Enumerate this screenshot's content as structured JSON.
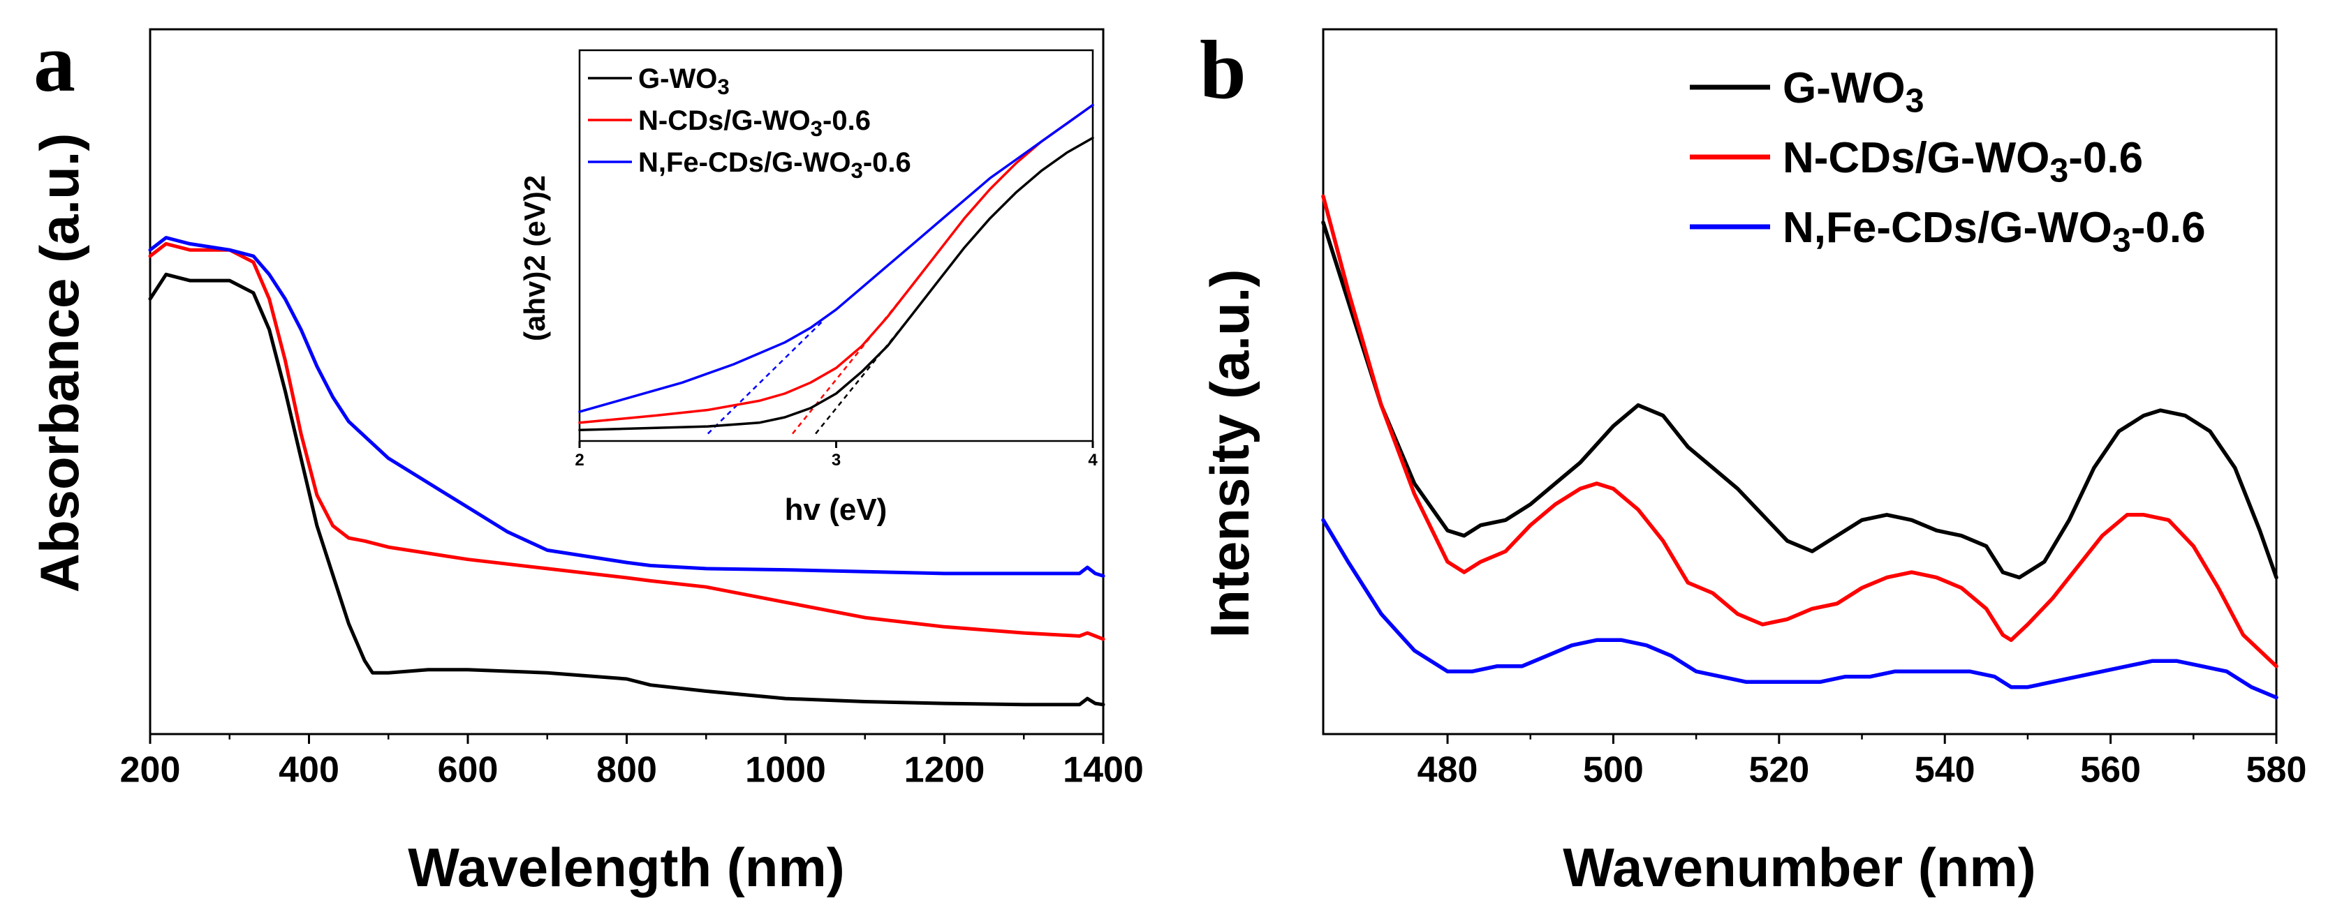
{
  "chart_data": [
    {
      "panel": "a",
      "type": "line",
      "xlabel": "Wavelength (nm)",
      "ylabel": "Absorbance (a.u.)",
      "xlim": [
        200,
        1400
      ],
      "ylim": [
        0,
        1
      ],
      "xticks": [
        "200",
        "400",
        "600",
        "800",
        "1000",
        "1200",
        "1400"
      ],
      "series": [
        {
          "name": "G-WO3",
          "color": "#000000",
          "x": [
            200,
            220,
            250,
            300,
            330,
            350,
            370,
            390,
            410,
            430,
            450,
            470,
            480,
            500,
            550,
            600,
            700,
            800,
            830,
            900,
            1000,
            1100,
            1200,
            1300,
            1370,
            1380,
            1390,
            1400
          ],
          "y": [
            0.71,
            0.75,
            0.74,
            0.74,
            0.72,
            0.66,
            0.56,
            0.45,
            0.34,
            0.26,
            0.18,
            0.12,
            0.1,
            0.1,
            0.105,
            0.105,
            0.1,
            0.09,
            0.08,
            0.07,
            0.058,
            0.053,
            0.05,
            0.048,
            0.048,
            0.058,
            0.05,
            0.048
          ]
        },
        {
          "name": "N-CDs/G-WO3-0.6",
          "color": "#ff0000",
          "x": [
            200,
            220,
            250,
            300,
            330,
            350,
            370,
            390,
            410,
            430,
            450,
            470,
            500,
            550,
            600,
            700,
            800,
            830,
            900,
            1000,
            1100,
            1200,
            1300,
            1370,
            1380,
            1390,
            1400
          ],
          "y": [
            0.78,
            0.8,
            0.79,
            0.79,
            0.77,
            0.71,
            0.61,
            0.49,
            0.39,
            0.34,
            0.32,
            0.315,
            0.305,
            0.295,
            0.285,
            0.27,
            0.255,
            0.25,
            0.24,
            0.215,
            0.19,
            0.175,
            0.165,
            0.16,
            0.165,
            0.16,
            0.155
          ]
        },
        {
          "name": "N,Fe-CDs/G-WO3-0.6",
          "color": "#0000ff",
          "x": [
            200,
            220,
            250,
            300,
            330,
            350,
            370,
            390,
            410,
            430,
            450,
            500,
            550,
            600,
            650,
            700,
            800,
            830,
            900,
            1000,
            1100,
            1200,
            1300,
            1370,
            1380,
            1390,
            1400
          ],
          "y": [
            0.79,
            0.81,
            0.8,
            0.79,
            0.78,
            0.75,
            0.71,
            0.66,
            0.6,
            0.55,
            0.51,
            0.45,
            0.41,
            0.37,
            0.33,
            0.3,
            0.28,
            0.275,
            0.27,
            0.268,
            0.265,
            0.262,
            0.262,
            0.262,
            0.272,
            0.262,
            0.258
          ]
        }
      ],
      "inset": {
        "type": "line",
        "xlabel": "hv (eV)",
        "ylabel": "(ahv)2 (eV)2",
        "xlim": [
          2,
          4
        ],
        "ylim": [
          0,
          1
        ],
        "xticks": [
          "2",
          "3",
          "4"
        ],
        "legend": [
          {
            "name": "G-WO3",
            "color": "#000000"
          },
          {
            "name": "N-CDs/G-WO3-0.6",
            "color": "#ff0000"
          },
          {
            "name": "N,Fe-CDs/G-WO3-0.6",
            "color": "#0000ff"
          }
        ],
        "series": [
          {
            "name": "G-WO3",
            "color": "#000000",
            "x": [
              2,
              2.5,
              2.7,
              2.8,
              2.9,
              3.0,
              3.1,
              3.2,
              3.3,
              3.4,
              3.5,
              3.6,
              3.7,
              3.8,
              3.9,
              4.0
            ],
            "y": [
              0.01,
              0.02,
              0.03,
              0.045,
              0.07,
              0.11,
              0.17,
              0.24,
              0.33,
              0.42,
              0.51,
              0.59,
              0.66,
              0.72,
              0.77,
              0.81
            ]
          },
          {
            "name": "N-CDs/G-WO3-0.6",
            "color": "#ff0000",
            "x": [
              2,
              2.3,
              2.5,
              2.7,
              2.8,
              2.9,
              3.0,
              3.1,
              3.2,
              3.3,
              3.4,
              3.5,
              3.6,
              3.7,
              3.8,
              3.9,
              4.0
            ],
            "y": [
              0.03,
              0.05,
              0.065,
              0.09,
              0.11,
              0.14,
              0.18,
              0.24,
              0.32,
              0.41,
              0.5,
              0.59,
              0.67,
              0.74,
              0.8,
              0.85,
              0.9
            ]
          },
          {
            "name": "N,Fe-CDs/G-WO3-0.6",
            "color": "#0000ff",
            "x": [
              2,
              2.2,
              2.4,
              2.6,
              2.8,
              2.9,
              3.0,
              3.1,
              3.2,
              3.3,
              3.4,
              3.5,
              3.6,
              3.7,
              3.8,
              3.9,
              4.0
            ],
            "y": [
              0.06,
              0.1,
              0.14,
              0.19,
              0.25,
              0.29,
              0.34,
              0.4,
              0.46,
              0.52,
              0.58,
              0.64,
              0.7,
              0.75,
              0.8,
              0.85,
              0.9
            ]
          }
        ],
        "tangent_lines": [
          {
            "series": "G-WO3",
            "color": "#000000",
            "x": [
              2.92,
              3.3
            ],
            "y": [
              0.0,
              0.33
            ]
          },
          {
            "series": "N-CDs/G-WO3-0.6",
            "color": "#ff0000",
            "x": [
              2.83,
              3.3
            ],
            "y": [
              0.0,
              0.41
            ]
          },
          {
            "series": "N,Fe-CDs/G-WO3-0.6",
            "color": "#0000ff",
            "x": [
              2.5,
              2.95
            ],
            "y": [
              0.0,
              0.31
            ]
          }
        ]
      }
    },
    {
      "panel": "b",
      "type": "line",
      "xlabel": "Wavenumber (nm)",
      "ylabel": "Intensity (a.u.)",
      "xlim": [
        465,
        580
      ],
      "ylim": [
        0,
        1
      ],
      "xticks": [
        "480",
        "500",
        "520",
        "540",
        "560",
        "580"
      ],
      "legend": [
        {
          "name": "G-WO3",
          "color": "#000000"
        },
        {
          "name": "N-CDs/G-WO3-0.6",
          "color": "#ff0000"
        },
        {
          "name": "N,Fe-CDs/G-WO3-0.6",
          "color": "#0000ff"
        }
      ],
      "series": [
        {
          "name": "G-WO3",
          "color": "#000000",
          "x": [
            465,
            468,
            472,
            476,
            480,
            482,
            484,
            487,
            490,
            493,
            496,
            500,
            503,
            506,
            509,
            512,
            515,
            518,
            521,
            524,
            527,
            530,
            533,
            536,
            539,
            542,
            545,
            547,
            549,
            552,
            555,
            558,
            561,
            564,
            566,
            569,
            572,
            575,
            578,
            580
          ],
          "y": [
            0.95,
            0.8,
            0.6,
            0.45,
            0.36,
            0.35,
            0.37,
            0.38,
            0.41,
            0.45,
            0.49,
            0.56,
            0.6,
            0.58,
            0.52,
            0.48,
            0.44,
            0.39,
            0.34,
            0.32,
            0.35,
            0.38,
            0.39,
            0.38,
            0.36,
            0.35,
            0.33,
            0.28,
            0.27,
            0.3,
            0.38,
            0.48,
            0.55,
            0.58,
            0.59,
            0.58,
            0.55,
            0.48,
            0.36,
            0.27
          ]
        },
        {
          "name": "N-CDs/G-WO3-0.6",
          "color": "#ff0000",
          "x": [
            465,
            468,
            472,
            476,
            480,
            482,
            484,
            487,
            490,
            493,
            496,
            498,
            500,
            503,
            506,
            509,
            512,
            515,
            518,
            521,
            524,
            527,
            530,
            533,
            536,
            539,
            542,
            545,
            547,
            548,
            550,
            553,
            556,
            559,
            562,
            564,
            567,
            570,
            573,
            576,
            580
          ],
          "y": [
            1.0,
            0.82,
            0.6,
            0.43,
            0.3,
            0.28,
            0.3,
            0.32,
            0.37,
            0.41,
            0.44,
            0.45,
            0.44,
            0.4,
            0.34,
            0.26,
            0.24,
            0.2,
            0.18,
            0.19,
            0.21,
            0.22,
            0.25,
            0.27,
            0.28,
            0.27,
            0.25,
            0.21,
            0.16,
            0.15,
            0.18,
            0.23,
            0.29,
            0.35,
            0.39,
            0.39,
            0.38,
            0.33,
            0.25,
            0.16,
            0.1
          ]
        },
        {
          "name": "N,Fe-CDs/G-WO3-0.6",
          "color": "#0000ff",
          "x": [
            465,
            468,
            472,
            476,
            480,
            483,
            486,
            489,
            492,
            495,
            498,
            501,
            504,
            507,
            510,
            513,
            516,
            519,
            522,
            525,
            528,
            531,
            534,
            537,
            540,
            543,
            546,
            548,
            550,
            553,
            556,
            559,
            562,
            565,
            568,
            571,
            574,
            577,
            580
          ],
          "y": [
            0.38,
            0.3,
            0.2,
            0.13,
            0.09,
            0.09,
            0.1,
            0.1,
            0.12,
            0.14,
            0.15,
            0.15,
            0.14,
            0.12,
            0.09,
            0.08,
            0.07,
            0.07,
            0.07,
            0.07,
            0.08,
            0.08,
            0.09,
            0.09,
            0.09,
            0.09,
            0.08,
            0.06,
            0.06,
            0.07,
            0.08,
            0.09,
            0.1,
            0.11,
            0.11,
            0.1,
            0.09,
            0.06,
            0.04
          ]
        }
      ]
    }
  ],
  "panels": {
    "a": {
      "letter": "a"
    },
    "b": {
      "letter": "b"
    }
  }
}
